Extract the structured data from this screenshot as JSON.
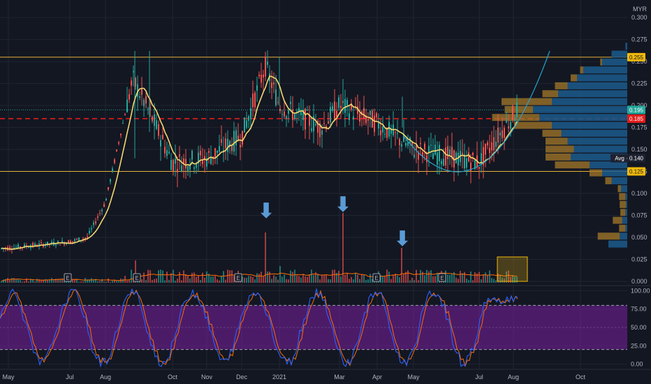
{
  "chart_data": [
    {
      "type": "candlestick",
      "title": "",
      "currency": "MYR",
      "x_ticks": [
        "May",
        "Jul",
        "Aug",
        "Oct",
        "Nov",
        "Dec",
        "2021",
        "Mar",
        "Apr",
        "May",
        "Jul",
        "Aug",
        "Oct"
      ],
      "y_ticks": [
        "0.300",
        "0.275",
        "0.250",
        "0.225",
        "0.200",
        "0.175",
        "0.150",
        "0.125",
        "0.100",
        "0.075",
        "0.050",
        "0.025",
        "0.000"
      ],
      "ylim": [
        -0.004,
        0.316
      ],
      "price_tags": [
        {
          "label": "0.255",
          "value": 0.255,
          "color": "#f0b90b",
          "text_color": "#131722"
        },
        {
          "label": "0.195",
          "value": 0.195,
          "color": "#26a69a",
          "text_color": "#ffffff"
        },
        {
          "label": "0.185",
          "value": 0.185,
          "color": "#e21b1b",
          "text_color": "#ffffff"
        },
        {
          "label": "Avg · 0.140",
          "value": 0.14,
          "color": "#1e2230",
          "text_color": "#ffffff"
        },
        {
          "label": "0.125",
          "value": 0.125,
          "color": "#f0b90b",
          "text_color": "#131722"
        }
      ],
      "horizontal_levels": [
        {
          "value": 0.255,
          "style": "solid",
          "color": "#e8b33b"
        },
        {
          "value": 0.125,
          "style": "solid",
          "color": "#e8b33b"
        },
        {
          "value": 0.185,
          "style": "dashed",
          "color": "#e21b1b"
        },
        {
          "value": 0.195,
          "style": "dotted",
          "color": "#26a69a"
        }
      ],
      "price_path": [
        {
          "x": "May",
          "close": 0.038
        },
        {
          "x": "Jul",
          "close": 0.045
        },
        {
          "x": "mid-Jul",
          "close": 0.05
        },
        {
          "x": "Aug",
          "close": 0.09
        },
        {
          "x": "late Aug",
          "close": 0.23
        },
        {
          "x": "Sep",
          "close": 0.19
        },
        {
          "x": "Oct",
          "close": 0.135
        },
        {
          "x": "Nov",
          "close": 0.14
        },
        {
          "x": "Dec",
          "close": 0.165
        },
        {
          "x": "late Dec",
          "close": 0.245
        },
        {
          "x": "2021",
          "close": 0.2
        },
        {
          "x": "Feb",
          "close": 0.175
        },
        {
          "x": "Mar",
          "close": 0.2
        },
        {
          "x": "Apr",
          "close": 0.18
        },
        {
          "x": "May",
          "close": 0.15
        },
        {
          "x": "Jul",
          "close": 0.135
        },
        {
          "x": "Aug",
          "close": 0.195
        }
      ],
      "moving_average_color": "#f5d76e",
      "cup_arc_color": "#26a1c9",
      "volume_profile": [
        {
          "price": 0.267,
          "up": 3,
          "down": 0
        },
        {
          "price": 0.258,
          "up": 25,
          "down": 0
        },
        {
          "price": 0.249,
          "up": 40,
          "down": 3
        },
        {
          "price": 0.24,
          "up": 70,
          "down": 5
        },
        {
          "price": 0.231,
          "up": 80,
          "down": 10
        },
        {
          "price": 0.222,
          "up": 95,
          "down": 20
        },
        {
          "price": 0.213,
          "up": 110,
          "down": 25
        },
        {
          "price": 0.204,
          "up": 120,
          "down": 80
        },
        {
          "price": 0.195,
          "up": 150,
          "down": 45
        },
        {
          "price": 0.186,
          "up": 140,
          "down": 75
        },
        {
          "price": 0.177,
          "up": 120,
          "down": 60
        },
        {
          "price": 0.168,
          "up": 105,
          "down": 30
        },
        {
          "price": 0.159,
          "up": 95,
          "down": 35
        },
        {
          "price": 0.15,
          "up": 85,
          "down": 45
        },
        {
          "price": 0.141,
          "up": 90,
          "down": 40
        },
        {
          "price": 0.132,
          "up": 60,
          "down": 55
        },
        {
          "price": 0.123,
          "up": 40,
          "down": 20
        },
        {
          "price": 0.114,
          "up": 25,
          "down": 10
        },
        {
          "price": 0.105,
          "up": 10,
          "down": 5
        },
        {
          "price": 0.096,
          "up": 3,
          "down": 10
        },
        {
          "price": 0.087,
          "up": 2,
          "down": 10
        },
        {
          "price": 0.078,
          "up": 3,
          "down": 8
        },
        {
          "price": 0.069,
          "up": 8,
          "down": 15
        },
        {
          "price": 0.06,
          "up": 3,
          "down": 10
        },
        {
          "price": 0.051,
          "up": 12,
          "down": 35
        },
        {
          "price": 0.042,
          "up": 30,
          "down": 0
        }
      ],
      "earnings_markers": [
        "Jul",
        "late Aug",
        "late Nov",
        "Mar",
        "May"
      ],
      "earnings_label": "E",
      "volume_spike_arrows": [
        "mid-Dec",
        "Mar",
        "late Apr"
      ]
    },
    {
      "type": "line",
      "title": "",
      "y_ticks": [
        "100.00",
        "75.00",
        "50.00",
        "25.00",
        "0.00"
      ],
      "ylim": [
        -6,
        106
      ],
      "band": [
        20,
        80
      ],
      "band_color": "#7b1fa2",
      "series": [
        {
          "name": "",
          "color": "#2962ff"
        },
        {
          "name": "",
          "color": "#ff6d00"
        }
      ]
    }
  ],
  "colors": {
    "bg": "#131722",
    "grid": "#1f2431",
    "up": "#26a69a",
    "down": "#ef5350"
  }
}
